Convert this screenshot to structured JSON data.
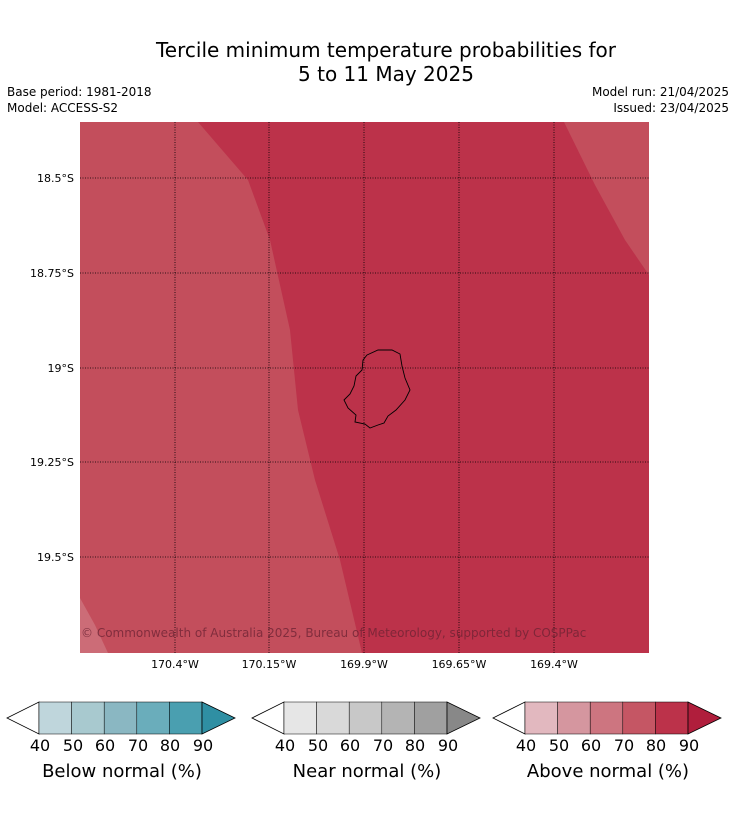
{
  "title_line1": "Tercile minimum temperature probabilities for",
  "title_line2": "5 to 11 May 2025",
  "base_period": "Base period: 1981-2018",
  "model": "Model: ACCESS-S2",
  "model_run": "Model run: 21/04/2025",
  "issued": "Issued: 23/04/2025",
  "lat_labels": [
    "18.5°S",
    "18.75°S",
    "19°S",
    "19.25°S",
    "19.5°S"
  ],
  "lon_labels": [
    "170.4°W",
    "170.15°W",
    "169.9°W",
    "169.65°W",
    "169.4°W"
  ],
  "copyright": "© Commonwealth of Australia 2025, Bureau of Meteorology, supported by COSPPac",
  "colorbars": [
    {
      "label": "Below normal (%)",
      "ticks": [
        "40",
        "50",
        "60",
        "70",
        "80",
        "90"
      ],
      "colors": [
        "#ffffff",
        "#bfd6dc",
        "#a8c9cf",
        "#8ab7c2",
        "#6aadbb",
        "#4a9fb0",
        "#2f8fa3"
      ]
    },
    {
      "label": "Near normal (%)",
      "ticks": [
        "40",
        "50",
        "60",
        "70",
        "80",
        "90"
      ],
      "colors": [
        "#ffffff",
        "#e6e6e6",
        "#d9d9d9",
        "#c8c8c8",
        "#b4b4b4",
        "#a0a0a0",
        "#888888"
      ]
    },
    {
      "label": "Above normal (%)",
      "ticks": [
        "40",
        "50",
        "60",
        "70",
        "80",
        "90"
      ],
      "colors": [
        "#ffffff",
        "#e2b8bf",
        "#d5969f",
        "#cd7580",
        "#c55664",
        "#bc324a",
        "#b01e3c"
      ]
    }
  ],
  "map_colors": {
    "band_70_80": "#c34e5c",
    "band_80_90": "#bc324a",
    "band_light": "#cc6c77"
  },
  "island_name_icon": "niue-island-outline"
}
